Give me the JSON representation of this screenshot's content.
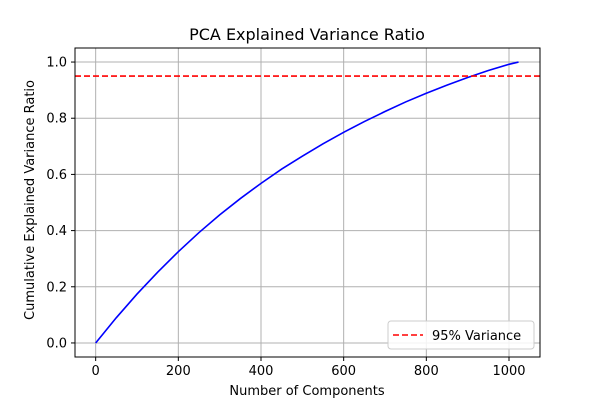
{
  "chart_data": {
    "type": "line",
    "title": "PCA Explained Variance Ratio",
    "xlabel": "Number of Components",
    "ylabel": "Cumulative Explained Variance Ratio",
    "xlim": [
      -50,
      1075
    ],
    "ylim": [
      -0.05,
      1.05
    ],
    "xticks": [
      0,
      200,
      400,
      600,
      800,
      1000
    ],
    "yticks": [
      0.0,
      0.2,
      0.4,
      0.6,
      0.8,
      1.0
    ],
    "xtick_labels": [
      "0",
      "200",
      "400",
      "600",
      "800",
      "1000"
    ],
    "ytick_labels": [
      "0.0",
      "0.2",
      "0.4",
      "0.6",
      "0.8",
      "1.0"
    ],
    "grid": true,
    "legend_position": "lower-right",
    "series": [
      {
        "color": "#0000ff",
        "style": "solid",
        "x": [
          0,
          50,
          100,
          150,
          200,
          250,
          300,
          350,
          400,
          450,
          500,
          550,
          600,
          650,
          700,
          750,
          800,
          850,
          900,
          950,
          1000,
          1023
        ],
        "y": [
          0.0,
          0.09,
          0.174,
          0.252,
          0.325,
          0.393,
          0.456,
          0.514,
          0.568,
          0.619,
          0.665,
          0.709,
          0.75,
          0.788,
          0.824,
          0.858,
          0.889,
          0.918,
          0.945,
          0.97,
          0.992,
          1.0
        ]
      }
    ],
    "hlines": [
      {
        "y": 0.95,
        "color": "#ff0000",
        "style": "dashed",
        "label": "95% Variance"
      }
    ]
  }
}
